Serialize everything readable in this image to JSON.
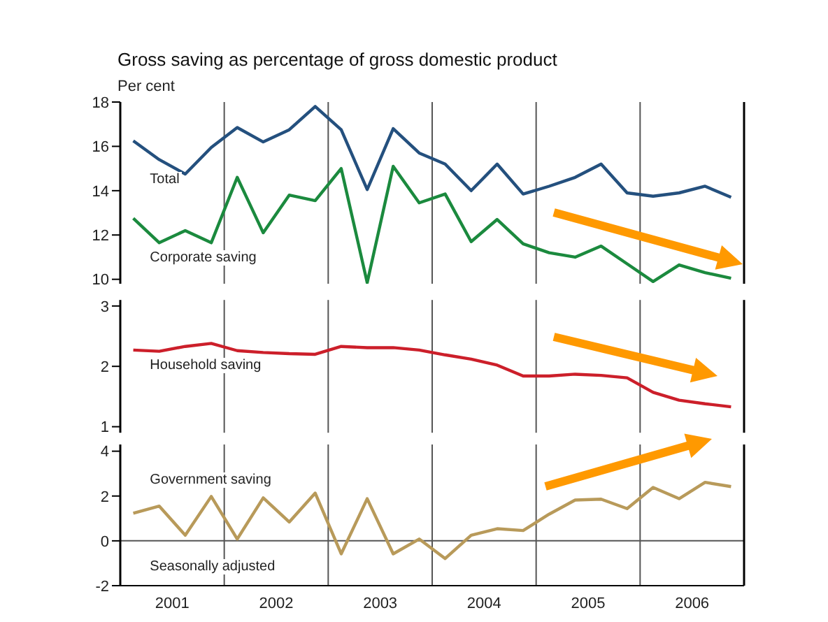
{
  "chart_data": [
    {
      "type": "line",
      "title": "Gross saving as percentage of gross domestic product",
      "ylabel": "Per cent",
      "tick_labels": "y",
      "x": [
        2001.125,
        2001.375,
        2001.625,
        2001.875,
        2002.125,
        2002.375,
        2002.625,
        2002.875,
        2003.125,
        2003.375,
        2003.625,
        2003.875,
        2004.125,
        2004.375,
        2004.625,
        2004.875,
        2005.125,
        2005.375,
        2005.625,
        2005.875,
        2006.125,
        2006.375,
        2006.625,
        2006.875
      ],
      "xlim": [
        2001,
        2007
      ],
      "series": [
        {
          "name": "Total",
          "color": "#24507e",
          "values": [
            16.25,
            15.4,
            14.75,
            15.95,
            16.85,
            16.2,
            16.75,
            17.8,
            16.75,
            14.05,
            16.8,
            15.7,
            15.2,
            14.0,
            15.2,
            13.85,
            14.2,
            14.6,
            15.2,
            13.9,
            13.75,
            13.9,
            14.2,
            13.7
          ]
        },
        {
          "name": "Corporate saving",
          "color": "#1b8a3e",
          "values": [
            12.75,
            11.65,
            12.2,
            11.65,
            14.6,
            12.1,
            13.8,
            13.55,
            15.0,
            9.85,
            15.1,
            13.45,
            13.85,
            11.7,
            12.7,
            11.6,
            11.2,
            11.0,
            11.5,
            10.7,
            9.9,
            10.65,
            10.3,
            10.05
          ]
        }
      ],
      "ylim": [
        9.8,
        18
      ],
      "yticks": [
        10,
        12,
        14,
        16,
        18
      ],
      "ref_lines": [
        {
          "axis": "x",
          "value": 2002
        },
        {
          "axis": "x",
          "value": 2003
        },
        {
          "axis": "x",
          "value": 2004
        },
        {
          "axis": "x",
          "value": 2005
        },
        {
          "axis": "x",
          "value": 2006
        }
      ]
    },
    {
      "type": "line",
      "tick_labels": "y",
      "x": [
        2001.125,
        2001.375,
        2001.625,
        2001.875,
        2002.125,
        2002.375,
        2002.625,
        2002.875,
        2003.125,
        2003.375,
        2003.625,
        2003.875,
        2004.125,
        2004.375,
        2004.625,
        2004.875,
        2005.125,
        2005.375,
        2005.625,
        2005.875,
        2006.125,
        2006.375,
        2006.625,
        2006.875
      ],
      "xlim": [
        2001,
        2007
      ],
      "series": [
        {
          "name": "Household saving",
          "color": "#cc1f2a",
          "values": [
            2.27,
            2.25,
            2.33,
            2.38,
            2.26,
            2.23,
            2.21,
            2.2,
            2.33,
            2.31,
            2.31,
            2.27,
            2.19,
            2.12,
            2.02,
            1.84,
            1.84,
            1.87,
            1.85,
            1.81,
            1.57,
            1.44,
            1.38,
            1.33
          ]
        }
      ],
      "ylim": [
        0.9,
        3.1
      ],
      "yticks": [
        1,
        2,
        3
      ],
      "ref_lines": [
        {
          "axis": "x",
          "value": 2002
        },
        {
          "axis": "x",
          "value": 2003
        },
        {
          "axis": "x",
          "value": 2004
        },
        {
          "axis": "x",
          "value": 2005
        },
        {
          "axis": "x",
          "value": 2006
        }
      ]
    },
    {
      "type": "line",
      "annotations": [
        "Seasonally adjusted"
      ],
      "x": [
        2001.125,
        2001.375,
        2001.625,
        2001.875,
        2002.125,
        2002.375,
        2002.625,
        2002.875,
        2003.125,
        2003.375,
        2003.625,
        2003.875,
        2004.125,
        2004.375,
        2004.625,
        2004.875,
        2005.125,
        2005.375,
        2005.625,
        2005.875,
        2006.125,
        2006.375,
        2006.625,
        2006.875
      ],
      "xlim": [
        2001,
        2007
      ],
      "xticks": [
        {
          "value": 2001.5,
          "label": "2001"
        },
        {
          "value": 2002.5,
          "label": "2002"
        },
        {
          "value": 2003.5,
          "label": "2003"
        },
        {
          "value": 2004.5,
          "label": "2004"
        },
        {
          "value": 2005.5,
          "label": "2005"
        },
        {
          "value": 2006.5,
          "label": "2006"
        }
      ],
      "series": [
        {
          "name": "Government saving",
          "color": "#b89a5a",
          "values": [
            1.23,
            1.55,
            0.25,
            1.98,
            0.08,
            1.92,
            0.84,
            2.13,
            -0.58,
            1.88,
            -0.58,
            0.08,
            -0.79,
            0.25,
            0.54,
            0.46,
            1.19,
            1.82,
            1.86,
            1.44,
            2.38,
            1.88,
            2.61,
            2.42
          ]
        }
      ],
      "ylim": [
        -2,
        4.3
      ],
      "yticks": [
        -2,
        0,
        2,
        4
      ],
      "ref_lines": [
        {
          "axis": "y",
          "value": 0
        },
        {
          "axis": "x",
          "value": 2002
        },
        {
          "axis": "x",
          "value": 2003
        },
        {
          "axis": "x",
          "value": 2004
        },
        {
          "axis": "x",
          "value": 2005
        },
        {
          "axis": "x",
          "value": 2006
        }
      ]
    }
  ]
}
